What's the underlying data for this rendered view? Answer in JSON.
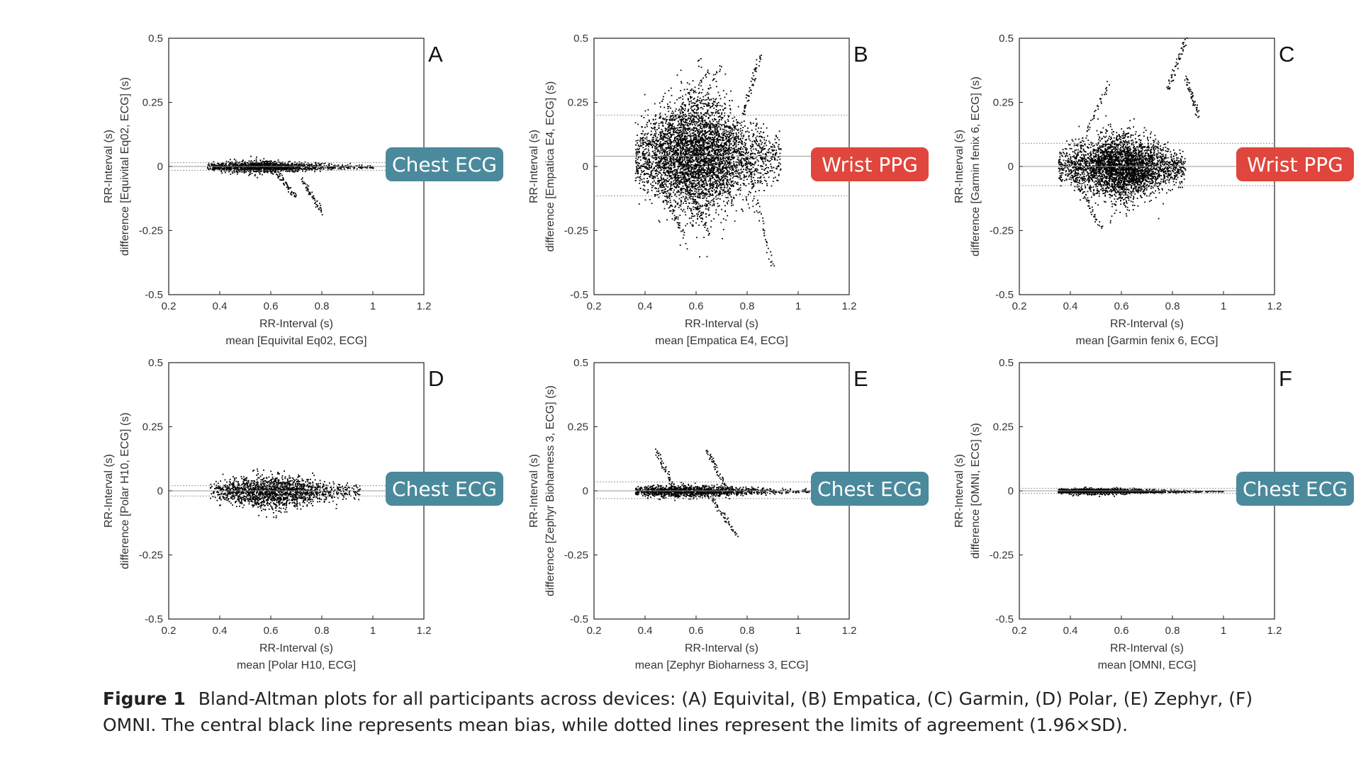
{
  "figure": {
    "caption_label": "Figure 1",
    "caption_text": "Bland-Altman plots for all participants across devices: (A) Equivital, (B) Empatica, (C) Garmin, (D) Polar, (E) Zephyr, (F) OMNI. The central black line represents mean bias, while dotted lines represent the limits of agreement (1.96×SD).",
    "colors": {
      "ecg_badge": "#4a8a9c",
      "ppg_badge": "#e0463d",
      "points": "#000000",
      "axis": "#222222",
      "limit_lines": "#999999"
    }
  },
  "chart_data": [
    {
      "type": "scatter",
      "panel_letter": "A",
      "ylabel_line1": "RR-Interval (s)",
      "ylabel_line2": "difference [Equivital Eq02, ECG] (s)",
      "xlabel_line1": "RR-Interval (s)",
      "xlabel_line2": "mean [Equivital Eq02, ECG]",
      "xlim": [
        0.2,
        1.2
      ],
      "ylim": [
        -0.5,
        0.5
      ],
      "xticks": [
        "0.2",
        "0.4",
        "0.6",
        "0.8",
        "1",
        "1.2"
      ],
      "yticks": [
        "0.5",
        "0.25",
        "0",
        "-0.25",
        "-0.5"
      ],
      "badge": "Chest ECG",
      "badge_type": "ecg",
      "bias": 0.0,
      "limits": [
        0.015,
        -0.015
      ],
      "x_range": [
        0.35,
        1.0
      ],
      "x_peak": 0.55,
      "spread": 0.012,
      "n": 1500,
      "streaks": [
        {
          "x1": 0.62,
          "y1": -0.02,
          "x2": 0.7,
          "y2": -0.12
        },
        {
          "x1": 0.72,
          "y1": -0.05,
          "x2": 0.8,
          "y2": -0.18
        }
      ]
    },
    {
      "type": "scatter",
      "panel_letter": "B",
      "ylabel_line1": "RR-Interval (s)",
      "ylabel_line2": "difference [Empatica E4, ECG] (s)",
      "xlabel_line1": "RR-Interval (s)",
      "xlabel_line2": "mean [Empatica E4, ECG]",
      "xlim": [
        0.2,
        1.2
      ],
      "ylim": [
        -0.5,
        0.5
      ],
      "xticks": [
        "0.2",
        "0.4",
        "0.6",
        "0.8",
        "1",
        "1.2"
      ],
      "yticks": [
        "0.5",
        "0.25",
        "0",
        "-0.25",
        "-0.5"
      ],
      "badge": "Wrist PPG",
      "badge_type": "ppg",
      "bias": 0.04,
      "limits": [
        0.2,
        -0.115
      ],
      "x_range": [
        0.36,
        0.93
      ],
      "x_peak": 0.6,
      "spread": 0.12,
      "n": 4500,
      "streaks": [
        {
          "x1": 0.45,
          "y1": 0.1,
          "x2": 0.65,
          "y2": 0.38
        },
        {
          "x1": 0.5,
          "y1": 0.05,
          "x2": 0.7,
          "y2": 0.4
        },
        {
          "x1": 0.45,
          "y1": -0.05,
          "x2": 0.55,
          "y2": -0.27
        },
        {
          "x1": 0.55,
          "y1": -0.05,
          "x2": 0.65,
          "y2": -0.27
        },
        {
          "x1": 0.8,
          "y1": 0.0,
          "x2": 0.9,
          "y2": -0.4
        },
        {
          "x1": 0.78,
          "y1": 0.2,
          "x2": 0.85,
          "y2": 0.44
        }
      ]
    },
    {
      "type": "scatter",
      "panel_letter": "C",
      "ylabel_line1": "RR-Interval (s)",
      "ylabel_line2": "difference [Garmin fenix 6, ECG] (s)",
      "xlabel_line1": "RR-Interval (s)",
      "xlabel_line2": "mean [Garmin fenix 6, ECG]",
      "xlim": [
        0.2,
        1.2
      ],
      "ylim": [
        -0.5,
        0.5
      ],
      "xticks": [
        "0.2",
        "0.4",
        "0.6",
        "0.8",
        "1",
        "1.2"
      ],
      "yticks": [
        "0.5",
        "0.25",
        "0",
        "-0.25",
        "-0.5"
      ],
      "badge": "Wrist PPG",
      "badge_type": "ppg",
      "bias": 0.0,
      "limits": [
        0.09,
        -0.075
      ],
      "x_range": [
        0.35,
        0.85
      ],
      "x_peak": 0.6,
      "spread": 0.07,
      "n": 3500,
      "streaks": [
        {
          "x1": 0.42,
          "y1": 0.05,
          "x2": 0.55,
          "y2": 0.33
        },
        {
          "x1": 0.42,
          "y1": -0.05,
          "x2": 0.52,
          "y2": -0.24
        },
        {
          "x1": 0.78,
          "y1": 0.3,
          "x2": 0.85,
          "y2": 0.5
        },
        {
          "x1": 0.85,
          "y1": 0.35,
          "x2": 0.9,
          "y2": 0.2
        }
      ]
    },
    {
      "type": "scatter",
      "panel_letter": "D",
      "ylabel_line1": "RR-Interval (s)",
      "ylabel_line2": "difference [Polar H10, ECG] (s)",
      "xlabel_line1": "RR-Interval (s)",
      "xlabel_line2": "mean [Polar H10, ECG]",
      "xlim": [
        0.2,
        1.2
      ],
      "ylim": [
        -0.5,
        0.5
      ],
      "xticks": [
        "0.2",
        "0.4",
        "0.6",
        "0.8",
        "1",
        "1.2"
      ],
      "yticks": [
        "0.5",
        "0.25",
        "0",
        "-0.25",
        "-0.5"
      ],
      "badge": "Chest ECG",
      "badge_type": "ecg",
      "bias": 0.0,
      "limits": [
        0.02,
        -0.02
      ],
      "x_range": [
        0.36,
        0.95
      ],
      "x_peak": 0.6,
      "spread": 0.035,
      "n": 1800,
      "streaks": []
    },
    {
      "type": "scatter",
      "panel_letter": "E",
      "ylabel_line1": "RR-Interval (s)",
      "ylabel_line2": "difference [Zephyr Bioharness 3, ECG] (s)",
      "xlabel_line1": "RR-Interval (s)",
      "xlabel_line2": "mean [Zephyr Bioharness 3, ECG]",
      "xlim": [
        0.2,
        1.2
      ],
      "ylim": [
        -0.5,
        0.5
      ],
      "xticks": [
        "0.2",
        "0.4",
        "0.6",
        "0.8",
        "1",
        "1.2"
      ],
      "yticks": [
        "0.5",
        "0.25",
        "0",
        "-0.25",
        "-0.5"
      ],
      "badge": "Chest ECG",
      "badge_type": "ecg",
      "bias": 0.0,
      "limits": [
        0.035,
        -0.03
      ],
      "x_range": [
        0.36,
        1.1
      ],
      "x_peak": 0.55,
      "spread": 0.012,
      "n": 1500,
      "streaks": [
        {
          "x1": 0.44,
          "y1": 0.16,
          "x2": 0.52,
          "y2": 0.0
        },
        {
          "x1": 0.64,
          "y1": 0.16,
          "x2": 0.72,
          "y2": 0.0
        },
        {
          "x1": 0.65,
          "y1": -0.02,
          "x2": 0.76,
          "y2": -0.17
        }
      ]
    },
    {
      "type": "scatter",
      "panel_letter": "F",
      "ylabel_line1": "RR-Interval (s)",
      "ylabel_line2": "difference [OMNI, ECG] (s)",
      "xlabel_line1": "RR-Interval (s)",
      "xlabel_line2": "mean [OMNI, ECG]",
      "xlim": [
        0.2,
        1.2
      ],
      "ylim": [
        -0.5,
        0.5
      ],
      "xticks": [
        "0.2",
        "0.4",
        "0.6",
        "0.8",
        "1",
        "1.2"
      ],
      "yticks": [
        "0.5",
        "0.25",
        "0",
        "-0.25",
        "-0.5"
      ],
      "badge": "Chest ECG",
      "badge_type": "ecg",
      "bias": 0.0,
      "limits": [
        0.01,
        -0.01
      ],
      "x_range": [
        0.35,
        1.0
      ],
      "x_peak": 0.5,
      "spread": 0.006,
      "n": 1500,
      "streaks": []
    }
  ]
}
